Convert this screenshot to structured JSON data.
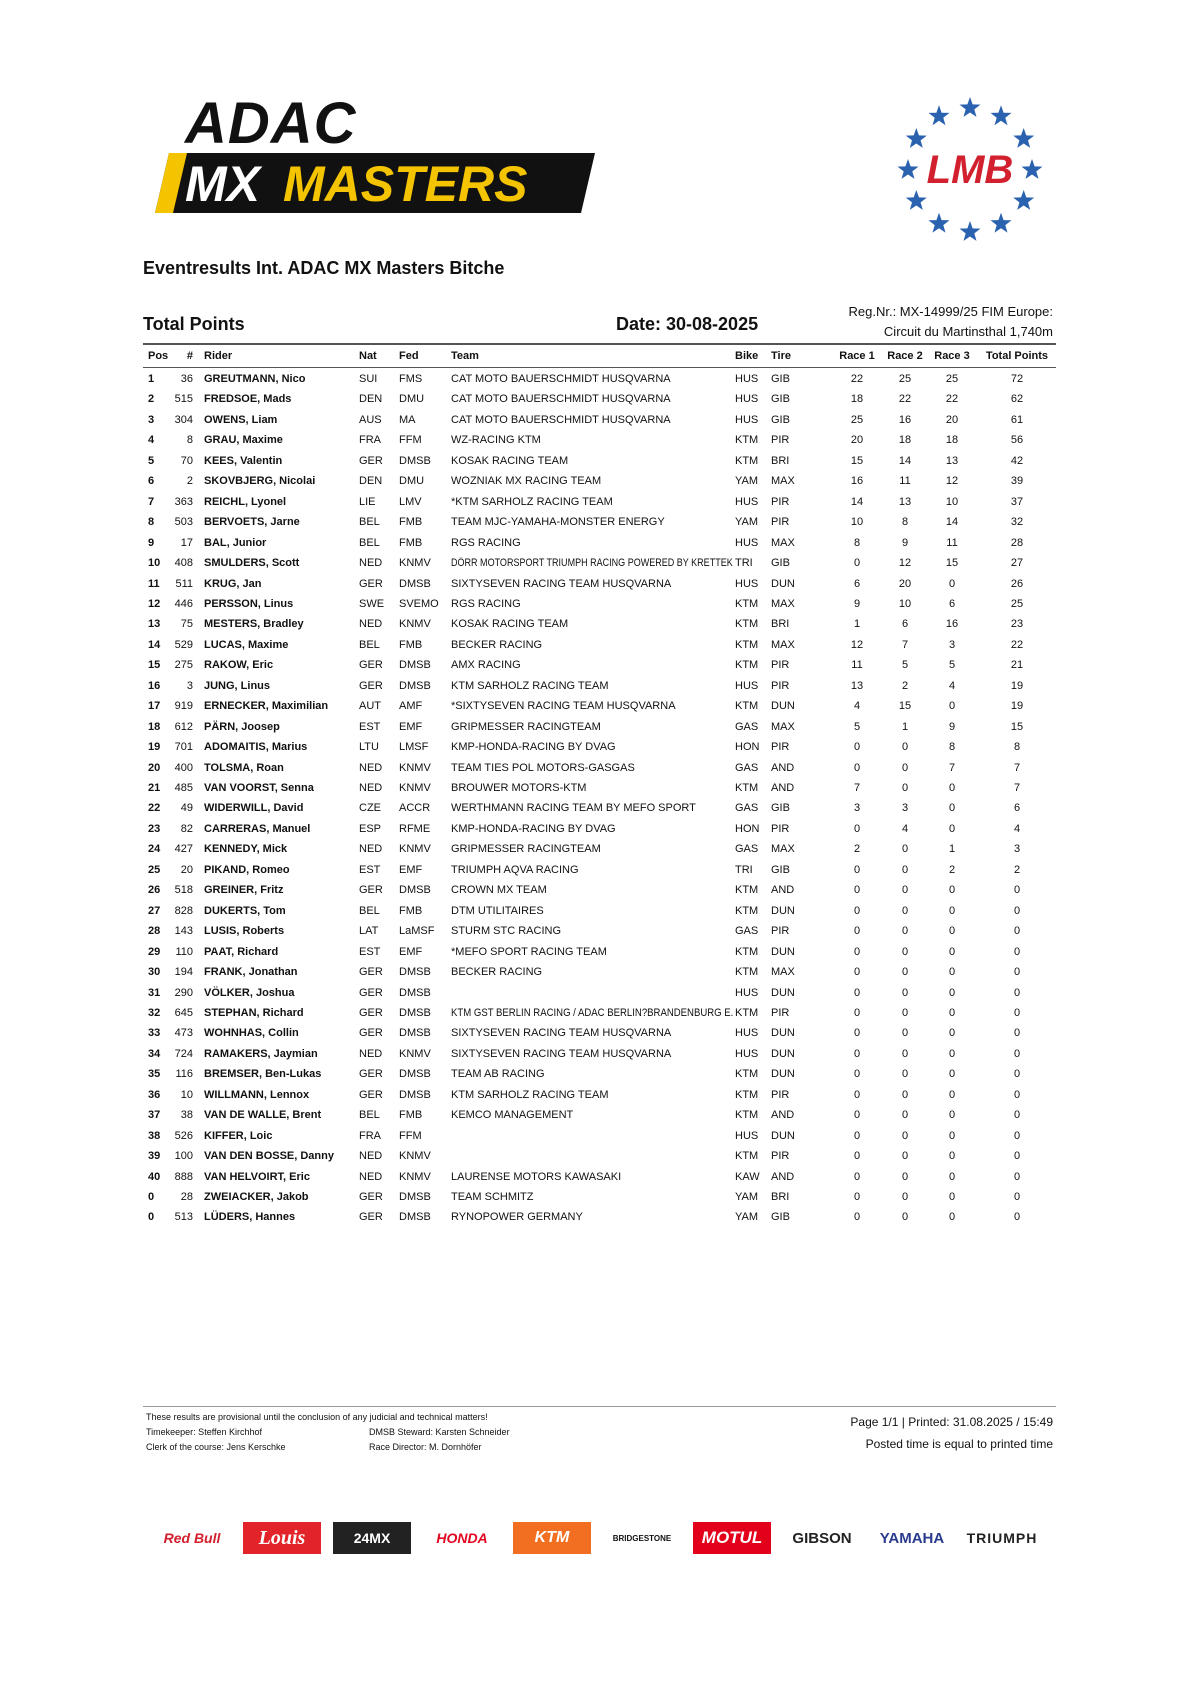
{
  "header": {
    "logo_top": "ADAC",
    "logo_mx": "MX",
    "logo_masters": "MASTERS",
    "federation_logo": "LMB",
    "event": "Eventresults Int. ADAC MX Masters Bitche",
    "section": "Total Points",
    "date": "Date: 30-08-2025",
    "reg": "Reg.Nr.: MX-14999/25 FIM Europe:",
    "circuit": "Circuit du Martinsthal 1,740m"
  },
  "table": {
    "columns": [
      "Pos",
      "#",
      "Rider",
      "Nat",
      "Fed",
      "Team",
      "Bike",
      "Tire",
      "Race 1",
      "Race 2",
      "Race 3",
      "Total Points"
    ],
    "rows": [
      [
        1,
        36,
        "GREUTMANN, Nico",
        "SUI",
        "FMS",
        "CAT MOTO BAUERSCHMIDT HUSQVARNA",
        "HUS",
        "GIB",
        22,
        25,
        25,
        72
      ],
      [
        2,
        515,
        "FREDSOE, Mads",
        "DEN",
        "DMU",
        "CAT MOTO BAUERSCHMIDT HUSQVARNA",
        "HUS",
        "GIB",
        18,
        22,
        22,
        62
      ],
      [
        3,
        304,
        "OWENS, Liam",
        "AUS",
        "MA",
        "CAT MOTO BAUERSCHMIDT HUSQVARNA",
        "HUS",
        "GIB",
        25,
        16,
        20,
        61
      ],
      [
        4,
        8,
        "GRAU, Maxime",
        "FRA",
        "FFM",
        "WZ-RACING KTM",
        "KTM",
        "PIR",
        20,
        18,
        18,
        56
      ],
      [
        5,
        70,
        "KEES, Valentin",
        "GER",
        "DMSB",
        "KOSAK RACING TEAM",
        "KTM",
        "BRI",
        15,
        14,
        13,
        42
      ],
      [
        6,
        2,
        "SKOVBJERG, Nicolai",
        "DEN",
        "DMU",
        "WOZNIAK MX RACING TEAM",
        "YAM",
        "MAX",
        16,
        11,
        12,
        39
      ],
      [
        7,
        363,
        "REICHL, Lyonel",
        "LIE",
        "LMV",
        "*KTM SARHOLZ RACING TEAM",
        "HUS",
        "PIR",
        14,
        13,
        10,
        37
      ],
      [
        8,
        503,
        "BERVOETS, Jarne",
        "BEL",
        "FMB",
        "TEAM MJC-YAMAHA-MONSTER ENERGY",
        "YAM",
        "PIR",
        10,
        8,
        14,
        32
      ],
      [
        9,
        17,
        "BAL, Junior",
        "BEL",
        "FMB",
        "RGS RACING",
        "HUS",
        "MAX",
        8,
        9,
        11,
        28
      ],
      [
        10,
        408,
        "SMULDERS, Scott",
        "NED",
        "KNMV",
        "DÖRR MOTORSPORT TRIUMPH RACING POWERED BY KRETTEK",
        "TRI",
        "GIB",
        0,
        12,
        15,
        27
      ],
      [
        11,
        511,
        "KRUG, Jan",
        "GER",
        "DMSB",
        "SIXTYSEVEN RACING TEAM HUSQVARNA",
        "HUS",
        "DUN",
        6,
        20,
        0,
        26
      ],
      [
        12,
        446,
        "PERSSON, Linus",
        "SWE",
        "SVEMO",
        "RGS RACING",
        "KTM",
        "MAX",
        9,
        10,
        6,
        25
      ],
      [
        13,
        75,
        "MESTERS, Bradley",
        "NED",
        "KNMV",
        "KOSAK RACING TEAM",
        "KTM",
        "BRI",
        1,
        6,
        16,
        23
      ],
      [
        14,
        529,
        "LUCAS, Maxime",
        "BEL",
        "FMB",
        "BECKER RACING",
        "KTM",
        "MAX",
        12,
        7,
        3,
        22
      ],
      [
        15,
        275,
        "RAKOW, Eric",
        "GER",
        "DMSB",
        "AMX RACING",
        "KTM",
        "PIR",
        11,
        5,
        5,
        21
      ],
      [
        16,
        3,
        "JUNG, Linus",
        "GER",
        "DMSB",
        "KTM SARHOLZ RACING TEAM",
        "HUS",
        "PIR",
        13,
        2,
        4,
        19
      ],
      [
        17,
        919,
        "ERNECKER, Maximilian",
        "AUT",
        "AMF",
        "*SIXTYSEVEN RACING TEAM HUSQVARNA",
        "KTM",
        "DUN",
        4,
        15,
        0,
        19
      ],
      [
        18,
        612,
        "PÄRN, Joosep",
        "EST",
        "EMF",
        "GRIPMESSER RACINGTEAM",
        "GAS",
        "MAX",
        5,
        1,
        9,
        15
      ],
      [
        19,
        701,
        "ADOMAITIS, Marius",
        "LTU",
        "LMSF",
        "KMP-HONDA-RACING BY DVAG",
        "HON",
        "PIR",
        0,
        0,
        8,
        8
      ],
      [
        20,
        400,
        "TOLSMA, Roan",
        "NED",
        "KNMV",
        "TEAM TIES POL MOTORS-GASGAS",
        "GAS",
        "AND",
        0,
        0,
        7,
        7
      ],
      [
        21,
        485,
        "VAN VOORST, Senna",
        "NED",
        "KNMV",
        "BROUWER MOTORS-KTM",
        "KTM",
        "AND",
        7,
        0,
        0,
        7
      ],
      [
        22,
        49,
        "WIDERWILL, David",
        "CZE",
        "ACCR",
        "WERTHMANN RACING TEAM BY MEFO SPORT",
        "GAS",
        "GIB",
        3,
        3,
        0,
        6
      ],
      [
        23,
        82,
        "CARRERAS, Manuel",
        "ESP",
        "RFME",
        "KMP-HONDA-RACING BY DVAG",
        "HON",
        "PIR",
        0,
        4,
        0,
        4
      ],
      [
        24,
        427,
        "KENNEDY, Mick",
        "NED",
        "KNMV",
        "GRIPMESSER RACINGTEAM",
        "GAS",
        "MAX",
        2,
        0,
        1,
        3
      ],
      [
        25,
        20,
        "PIKAND, Romeo",
        "EST",
        "EMF",
        "TRIUMPH AQVA RACING",
        "TRI",
        "GIB",
        0,
        0,
        2,
        2
      ],
      [
        26,
        518,
        "GREINER, Fritz",
        "GER",
        "DMSB",
        "CROWN MX TEAM",
        "KTM",
        "AND",
        0,
        0,
        0,
        0
      ],
      [
        27,
        828,
        "DUKERTS, Tom",
        "BEL",
        "FMB",
        "DTM UTILITAIRES",
        "KTM",
        "DUN",
        0,
        0,
        0,
        0
      ],
      [
        28,
        143,
        "LUSIS, Roberts",
        "LAT",
        "LaMSF",
        "STURM STC RACING",
        "GAS",
        "PIR",
        0,
        0,
        0,
        0
      ],
      [
        29,
        110,
        "PAAT, Richard",
        "EST",
        "EMF",
        "*MEFO SPORT RACING TEAM",
        "KTM",
        "DUN",
        0,
        0,
        0,
        0
      ],
      [
        30,
        194,
        "FRANK, Jonathan",
        "GER",
        "DMSB",
        "BECKER RACING",
        "KTM",
        "MAX",
        0,
        0,
        0,
        0
      ],
      [
        31,
        290,
        "VÖLKER, Joshua",
        "GER",
        "DMSB",
        null,
        "HUS",
        "DUN",
        0,
        0,
        0,
        0
      ],
      [
        32,
        645,
        "STEPHAN, Richard",
        "GER",
        "DMSB",
        "KTM GST BERLIN RACING / ADAC BERLIN?BRANDENBURG E.",
        "KTM",
        "PIR",
        0,
        0,
        0,
        0
      ],
      [
        33,
        473,
        "WOHNHAS, Collin",
        "GER",
        "DMSB",
        "SIXTYSEVEN RACING TEAM HUSQVARNA",
        "HUS",
        "DUN",
        0,
        0,
        0,
        0
      ],
      [
        34,
        724,
        "RAMAKERS, Jaymian",
        "NED",
        "KNMV",
        "SIXTYSEVEN RACING TEAM HUSQVARNA",
        "HUS",
        "DUN",
        0,
        0,
        0,
        0
      ],
      [
        35,
        116,
        "BREMSER, Ben-Lukas",
        "GER",
        "DMSB",
        "TEAM AB RACING",
        "KTM",
        "DUN",
        0,
        0,
        0,
        0
      ],
      [
        36,
        10,
        "WILLMANN, Lennox",
        "GER",
        "DMSB",
        "KTM SARHOLZ RACING TEAM",
        "KTM",
        "PIR",
        0,
        0,
        0,
        0
      ],
      [
        37,
        38,
        "VAN DE WALLE, Brent",
        "BEL",
        "FMB",
        "KEMCO MANAGEMENT",
        "KTM",
        "AND",
        0,
        0,
        0,
        0
      ],
      [
        38,
        526,
        "KIFFER, Loic",
        "FRA",
        "FFM",
        null,
        "HUS",
        "DUN",
        0,
        0,
        0,
        0
      ],
      [
        39,
        100,
        "VAN DEN BOSSE, Danny",
        "NED",
        "KNMV",
        null,
        "KTM",
        "PIR",
        0,
        0,
        0,
        0
      ],
      [
        40,
        888,
        "VAN HELVOIRT, Eric",
        "NED",
        "KNMV",
        "LAURENSE MOTORS KAWASAKI",
        "KAW",
        "AND",
        0,
        0,
        0,
        0
      ],
      [
        0,
        28,
        "ZWEIACKER, Jakob",
        "GER",
        "DMSB",
        "TEAM SCHMITZ",
        "YAM",
        "BRI",
        0,
        0,
        0,
        0
      ],
      [
        0,
        513,
        "LÜDERS, Hannes",
        "GER",
        "DMSB",
        "RYNOPOWER GERMANY",
        "YAM",
        "GIB",
        0,
        0,
        0,
        0
      ]
    ]
  },
  "footer": {
    "disclaimer": "These results are provisional until the conclusion of any judicial and technical matters!",
    "timekeeper": "Timekeeper: Steffen Kirchhof",
    "clerk": "Clerk of the course: Jens Kerschke",
    "steward": "DMSB Steward: Karsten Schneider",
    "director": "Race Director: M. Dornhöfer",
    "page": "Page 1/1 | Printed: 31.08.2025 / 15:49",
    "posted": "Posted time is equal to printed time"
  },
  "sponsors": [
    "Red Bull",
    "Louis",
    "24MX",
    "HONDA",
    "KTM",
    "BRIDGESTONE",
    "MOTUL",
    "GIBSON",
    "YAMAHA",
    "TRIUMPH"
  ]
}
